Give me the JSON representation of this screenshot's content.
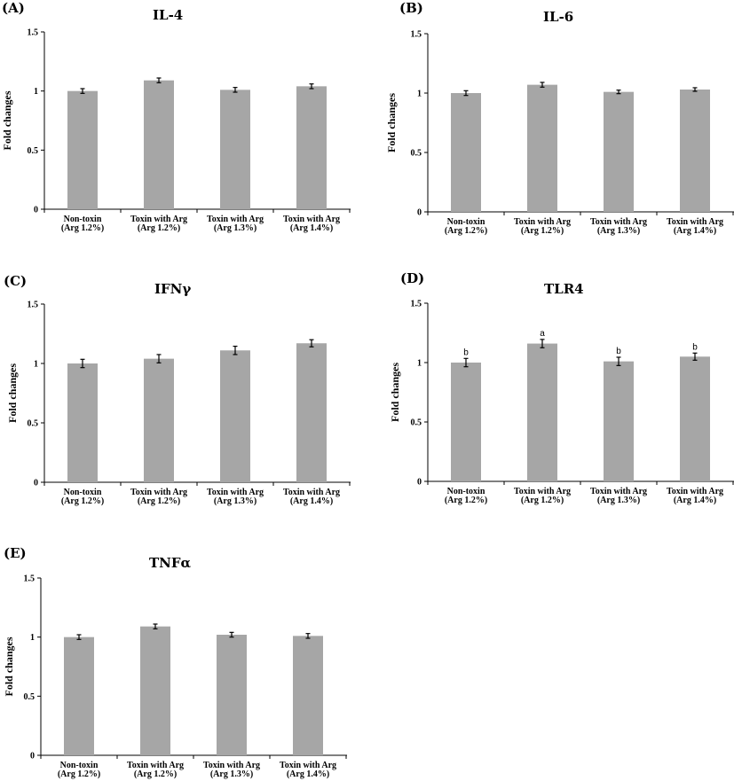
{
  "chart_data": [
    {
      "panel": "(A)",
      "type": "bar",
      "title": "IL-4",
      "ylabel": "Fold changes",
      "ylim": [
        0,
        1.5
      ],
      "yticks": [
        "0",
        "0.5",
        "1",
        "1.5"
      ],
      "categories": [
        [
          "Non-toxin",
          "(Arg 1.2%)"
        ],
        [
          "Toxin with Arg",
          "(Arg 1.2%)"
        ],
        [
          "Toxin with Arg",
          "(Arg 1.3%)"
        ],
        [
          "Toxin with Arg",
          "(Arg 1.4%)"
        ]
      ],
      "values": [
        1.0,
        1.09,
        1.01,
        1.04
      ],
      "errors": [
        0.02,
        0.02,
        0.02,
        0.02
      ],
      "sig_labels": [
        "",
        "",
        "",
        ""
      ]
    },
    {
      "panel": "(B)",
      "type": "bar",
      "title": "IL-6",
      "ylabel": "Fold changes",
      "ylim": [
        0,
        1.5
      ],
      "yticks": [
        "0",
        "0.5",
        "1",
        "1.5"
      ],
      "categories": [
        [
          "Non-toxin",
          "(Arg 1.2%)"
        ],
        [
          "Toxin with Arg",
          "(Arg 1.2%)"
        ],
        [
          "Toxin with Arg",
          "(Arg 1.3%)"
        ],
        [
          "Toxin with Arg",
          "(Arg 1.4%)"
        ]
      ],
      "values": [
        1.0,
        1.07,
        1.01,
        1.03
      ],
      "errors": [
        0.02,
        0.02,
        0.015,
        0.015
      ],
      "sig_labels": [
        "",
        "",
        "",
        ""
      ]
    },
    {
      "panel": "(C)",
      "type": "bar",
      "title": "IFNγ",
      "ylabel": "Fold changes",
      "ylim": [
        0,
        1.5
      ],
      "yticks": [
        "0",
        "0.5",
        "1",
        "1.5"
      ],
      "categories": [
        [
          "Non-toxin",
          "(Arg 1.2%)"
        ],
        [
          "Toxin with Arg",
          "(Arg 1.2%)"
        ],
        [
          "Toxin with Arg",
          "(Arg 1.3%)"
        ],
        [
          "Toxin with Arg",
          "(Arg 1.4%)"
        ]
      ],
      "values": [
        1.0,
        1.04,
        1.11,
        1.17
      ],
      "errors": [
        0.035,
        0.035,
        0.035,
        0.03
      ],
      "sig_labels": [
        "",
        "",
        "",
        ""
      ]
    },
    {
      "panel": "(D)",
      "type": "bar",
      "title": "TLR4",
      "ylabel": "Fold changes",
      "ylim": [
        0,
        1.5
      ],
      "yticks": [
        "0",
        "0.5",
        "1",
        "1.5"
      ],
      "categories": [
        [
          "Non-toxin",
          "(Arg 1.2%)"
        ],
        [
          "Toxin with Arg",
          "(Arg 1.2%)"
        ],
        [
          "Toxin with Arg",
          "(Arg 1.3%)"
        ],
        [
          "Toxin with Arg",
          "(Arg 1.4%)"
        ]
      ],
      "values": [
        1.0,
        1.16,
        1.01,
        1.05
      ],
      "errors": [
        0.035,
        0.035,
        0.035,
        0.03
      ],
      "sig_labels": [
        "b",
        "a",
        "b",
        "b"
      ]
    },
    {
      "panel": "(E)",
      "type": "bar",
      "title": "TNFα",
      "ylabel": "Fold changes",
      "ylim": [
        0,
        1.5
      ],
      "yticks": [
        "0",
        "0.5",
        "1",
        "1.5"
      ],
      "categories": [
        [
          "Non-toxin",
          "(Arg 1.2%)"
        ],
        [
          "Toxin with Arg",
          "(Arg 1.2%)"
        ],
        [
          "Toxin with Arg",
          "(Arg 1.3%)"
        ],
        [
          "Toxin with Arg",
          "(Arg 1.4%)"
        ]
      ],
      "values": [
        1.0,
        1.09,
        1.02,
        1.01
      ],
      "errors": [
        0.02,
        0.02,
        0.02,
        0.02
      ],
      "sig_labels": [
        "",
        "",
        "",
        ""
      ]
    }
  ]
}
